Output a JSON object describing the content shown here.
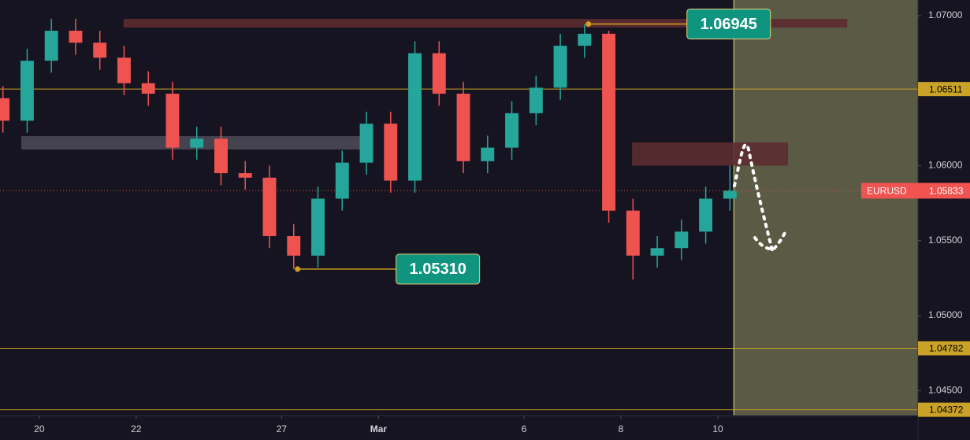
{
  "chart_data": {
    "type": "candlestick",
    "symbol": "EURUSD",
    "x": [
      -0.75,
      -0.25,
      0.25,
      0.75,
      1.25,
      1.75,
      2.25,
      2.75,
      3.25,
      3.75,
      4.25,
      4.75,
      5.25,
      5.75,
      6.25,
      6.75,
      7.25,
      7.75,
      8.25,
      8.75,
      9.25,
      9.75,
      10.25,
      10.75,
      11.25,
      11.75,
      12.25,
      12.75,
      13.25,
      13.75,
      14.25
    ],
    "open": [
      1.0645,
      1.063,
      1.067,
      1.069,
      1.0682,
      1.0672,
      1.0655,
      1.0648,
      1.0612,
      1.0618,
      1.0595,
      1.0592,
      1.0553,
      1.054,
      1.0578,
      1.0602,
      1.0628,
      1.059,
      1.0675,
      1.0648,
      1.0603,
      1.0612,
      1.0635,
      1.0652,
      1.068,
      1.0688,
      1.057,
      1.054,
      1.0545,
      1.0556,
      1.0578
    ],
    "high": [
      1.0653,
      1.0678,
      1.0698,
      1.0698,
      1.069,
      1.068,
      1.0663,
      1.0656,
      1.0626,
      1.0626,
      1.0603,
      1.06,
      1.0561,
      1.0586,
      1.061,
      1.0636,
      1.0636,
      1.0683,
      1.0683,
      1.0656,
      1.062,
      1.0643,
      1.066,
      1.0688,
      1.06945,
      1.069,
      1.0578,
      1.0553,
      1.0564,
      1.0586,
      1.06
    ],
    "low": [
      1.0622,
      1.0622,
      1.0662,
      1.0674,
      1.0664,
      1.0647,
      1.064,
      1.0604,
      1.0604,
      1.0587,
      1.0584,
      1.0545,
      1.0531,
      1.0532,
      1.057,
      1.0594,
      1.0582,
      1.0582,
      1.064,
      1.0595,
      1.0595,
      1.0604,
      1.0627,
      1.0644,
      1.0672,
      1.0562,
      1.0524,
      1.0532,
      1.0537,
      1.0548,
      1.057
    ],
    "close": [
      1.063,
      1.067,
      1.069,
      1.0682,
      1.0672,
      1.0655,
      1.0648,
      1.0612,
      1.0618,
      1.0595,
      1.0592,
      1.0553,
      1.054,
      1.0578,
      1.0602,
      1.0628,
      1.059,
      1.0675,
      1.0648,
      1.0603,
      1.0612,
      1.0635,
      1.0652,
      1.068,
      1.0688,
      1.057,
      1.054,
      1.0545,
      1.0556,
      1.0578,
      1.05833
    ],
    "up_color": "#26a69a",
    "down_color": "#ef5350",
    "xlim": [
      -0.81,
      18.13
    ],
    "xticks": [
      {
        "value": 0,
        "label": "20"
      },
      {
        "value": 2,
        "label": "22"
      },
      {
        "value": 5,
        "label": "27"
      },
      {
        "value": 7,
        "label": "Mar"
      },
      {
        "value": 10,
        "label": "6"
      },
      {
        "value": 12,
        "label": "8"
      },
      {
        "value": 14,
        "label": "10"
      }
    ],
    "ylim": [
      1.04333,
      1.07105
    ],
    "yticks": [
      {
        "value": 1.07,
        "label": "1.07000"
      },
      {
        "value": 1.06,
        "label": "1.06000"
      },
      {
        "value": 1.055,
        "label": "1.05500"
      },
      {
        "value": 1.05,
        "label": "1.05000"
      },
      {
        "value": 1.045,
        "label": "1.04500"
      }
    ],
    "price_lines": [
      1.06511,
      1.04782,
      1.04372
    ],
    "price_line_color": "#c9a227",
    "last_price": 1.05833,
    "last_price_color": "#f05350",
    "zones": [
      {
        "from_x": 1.74,
        "to_x": 16.67,
        "low": 1.06921,
        "high": 1.06979,
        "color": "#5c2a30"
      },
      {
        "from_x": -0.37,
        "to_x": 6.7,
        "low": 1.06108,
        "high": 1.06197,
        "color": "#4a4854"
      },
      {
        "from_x": 12.23,
        "to_x": 15.45,
        "low": 1.06,
        "high": 1.06155,
        "color": "#5c2c30"
      }
    ],
    "callouts": [
      {
        "x": 11.33,
        "value": 1.06945
      },
      {
        "x": 5.33,
        "value": {
          "value": 1.0531,
          "label": "1.05310"
        }
      }
    ],
    "forecast_start": 14.33,
    "forecast_color": "#5a5a45"
  }
}
